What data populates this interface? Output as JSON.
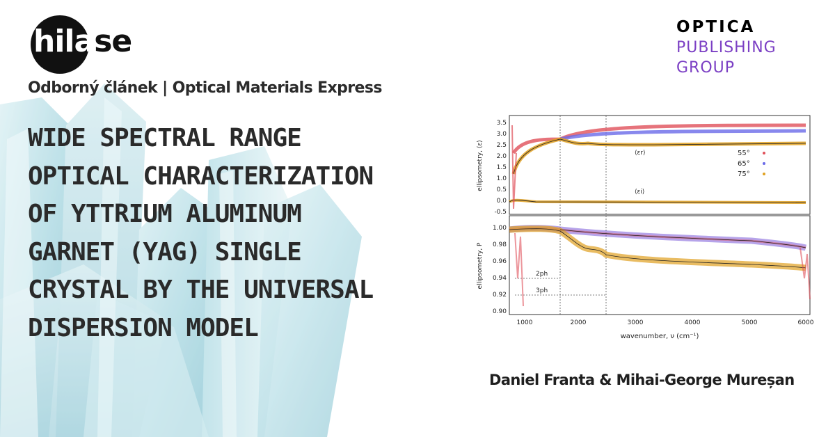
{
  "logo": {
    "part1": "hil",
    "part2": "a",
    "part3": "se"
  },
  "subtitle": "Odborný článek | Optical Materials Express",
  "title_lines": [
    "WIDE SPECTRAL RANGE",
    "OPTICAL CHARACTERIZATION",
    "OF YTTRIUM ALUMINUM",
    "GARNET (YAG) SINGLE",
    "CRYSTAL BY THE UNIVERSAL",
    "DISPERSION MODEL"
  ],
  "publisher": {
    "line1": "OPTICA",
    "line2": "PUBLISHING",
    "line3": "GROUP",
    "color": "#7b3fc4"
  },
  "authors": "Daniel Franta & Mihai-George Mureșan",
  "figure": {
    "top_ylabel": "ellipsometry, ⟨ε⟩",
    "bottom_ylabel": "ellipsometry, P",
    "xlabel": "wavenumber, ν (cm⁻¹)",
    "eps_r_label": "⟨εr⟩",
    "eps_i_label": "⟨εi⟩",
    "legend": [
      "55°",
      "65°",
      "75°"
    ],
    "legend_colors": [
      "#e0505a",
      "#6a6ae8",
      "#e0a020"
    ],
    "top_yticks": [
      "3.5",
      "3.0",
      "2.5",
      "2.0",
      "1.5",
      "1.0",
      "0.5",
      "0.0",
      "-0.5"
    ],
    "bottom_yticks": [
      "1.00",
      "0.98",
      "0.96",
      "0.94",
      "0.92",
      "0.90"
    ],
    "xticks": [
      "1000",
      "2000",
      "3000",
      "4000",
      "5000",
      "6000"
    ],
    "annot_2ph": "2ph",
    "annot_3ph": "3ph"
  }
}
